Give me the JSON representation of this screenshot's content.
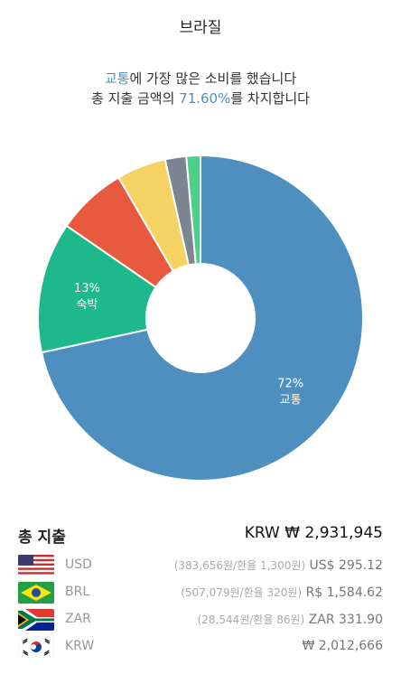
{
  "header": {
    "title": "브라질"
  },
  "summary": {
    "category": "교통",
    "line1_suffix": "에 가장 많은 소비를 했습니다",
    "line2_prefix": "총 지출 금액의 ",
    "percent": "71.60%",
    "line2_suffix": "를 차지합니다"
  },
  "colors": {
    "accent": "#4f8fbf",
    "transport": "#4f8fbf",
    "lodging": "#1db98a",
    "red": "#e85a40",
    "yellow": "#f6d262",
    "gray": "#7d8590",
    "green": "#4fd08a"
  },
  "chart_data": {
    "type": "pie",
    "donut": true,
    "slices": [
      {
        "name": "교통",
        "value": 71.6,
        "color": "#4f8fbf",
        "label_pct": "72%"
      },
      {
        "name": "숙박",
        "value": 13.0,
        "color": "#1db98a",
        "label_pct": "13%"
      },
      {
        "name": "",
        "value": 7.0,
        "color": "#e85a40",
        "label_pct": ""
      },
      {
        "name": "",
        "value": 4.9,
        "color": "#f6d262",
        "label_pct": ""
      },
      {
        "name": "",
        "value": 2.1,
        "color": "#7d8590",
        "label_pct": ""
      },
      {
        "name": "",
        "value": 1.4,
        "color": "#4fd08a",
        "label_pct": ""
      }
    ]
  },
  "totals": {
    "label": "총 지출",
    "value": "KRW ₩ 2,931,945"
  },
  "currencies": [
    {
      "code": "USD",
      "detail": "(383,656원/환율 1,300원)",
      "amount": "US$ 295.12",
      "flag": "us-flag-icon"
    },
    {
      "code": "BRL",
      "detail": "(507,079원/환율 320원)",
      "amount": "R$ 1,584.62",
      "flag": "brazil-flag-icon"
    },
    {
      "code": "ZAR",
      "detail": "(28,544원/환율 86원)",
      "amount": "ZAR 331.90",
      "flag": "south-africa-flag-icon"
    },
    {
      "code": "KRW",
      "detail": "",
      "amount": "₩ 2,012,666",
      "flag": "korea-flag-icon"
    }
  ]
}
